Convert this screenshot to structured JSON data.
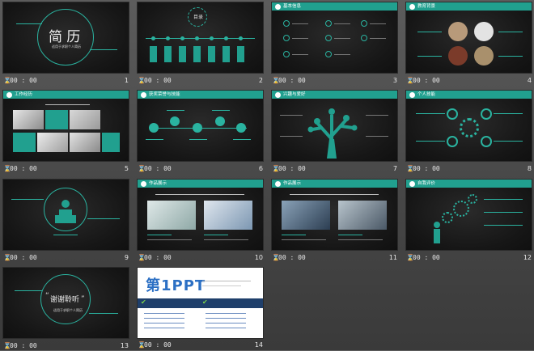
{
  "slides": [
    {
      "number": "1",
      "time": "00 : 00",
      "title_text": "简  历",
      "subtitle": "适用于求职个人简历"
    },
    {
      "number": "2",
      "time": "00 : 00",
      "title_text": "目录"
    },
    {
      "number": "3",
      "time": "00 : 00",
      "header": "基本信息"
    },
    {
      "number": "4",
      "time": "00 : 00",
      "header": "教育背景"
    },
    {
      "number": "5",
      "time": "00 : 00",
      "header": "工作经历"
    },
    {
      "number": "6",
      "time": "00 : 00",
      "header": "获奖荣誉与技能"
    },
    {
      "number": "7",
      "time": "00 : 00",
      "header": "兴趣与爱好"
    },
    {
      "number": "8",
      "time": "00 : 00",
      "header": "个人技能"
    },
    {
      "number": "9",
      "time": "00 : 00"
    },
    {
      "number": "10",
      "time": "00 : 00",
      "header": "作品展示"
    },
    {
      "number": "11",
      "time": "00 : 00",
      "header": "作品展示"
    },
    {
      "number": "12",
      "time": "00 : 00",
      "header": "自我评价"
    },
    {
      "number": "13",
      "time": "00 : 00",
      "title_text": "谢谢聆听",
      "subtitle": "适用于求职个人简历"
    },
    {
      "number": "14",
      "time": "00 : 00",
      "logo_text": "第1PPT"
    }
  ],
  "icons": {
    "time": "hourglass-icon"
  },
  "colors": {
    "accent": "#21a08f",
    "background": "#4a4a4a",
    "slide": "#161616"
  }
}
